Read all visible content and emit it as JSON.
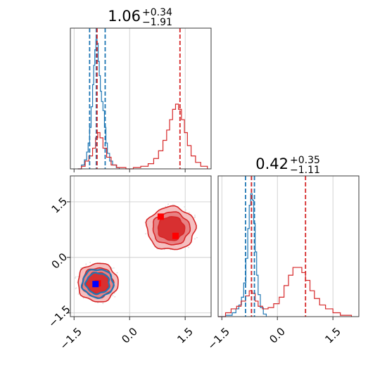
{
  "chart_data": {
    "type": "corner",
    "parameters": [
      "",
      ""
    ],
    "axis_range": [
      -1.6,
      2.2
    ],
    "ticks": [
      -1.5,
      0.0,
      1.5
    ],
    "tick_labels": [
      "−1.5",
      "0.0",
      "1.5"
    ],
    "grid": true,
    "panel_titles": [
      {
        "value": "1.06",
        "upper": "+0.34",
        "lower": "−1.91"
      },
      {
        "value": "0.42",
        "upper": "+0.35",
        "lower": "−1.11"
      }
    ],
    "colors": {
      "blue": "#1f77b4",
      "red": "#d62728",
      "red_light": "#f4b8b9",
      "red_mid": "#e77a7c"
    },
    "series": [
      {
        "color": "blue",
        "quantiles_p1": [
          -1.08,
          -0.9,
          -0.66
        ],
        "quantiles_p2": [
          -0.86,
          -0.7,
          -0.62
        ],
        "marker": [
          -0.92,
          -0.72
        ],
        "hist_p1": [
          [
            -1.4,
            0.0
          ],
          [
            -1.3,
            0.03
          ],
          [
            -1.22,
            0.07
          ],
          [
            -1.16,
            0.13
          ],
          [
            -1.12,
            0.2
          ],
          [
            -1.08,
            0.32
          ],
          [
            -1.04,
            0.48
          ],
          [
            -1.0,
            0.65
          ],
          [
            -0.97,
            0.8
          ],
          [
            -0.94,
            0.92
          ],
          [
            -0.91,
            1.0
          ],
          [
            -0.88,
            0.97
          ],
          [
            -0.85,
            0.83
          ],
          [
            -0.82,
            0.72
          ],
          [
            -0.79,
            0.6
          ],
          [
            -0.76,
            0.52
          ],
          [
            -0.72,
            0.45
          ],
          [
            -0.68,
            0.32
          ],
          [
            -0.64,
            0.2
          ],
          [
            -0.6,
            0.12
          ],
          [
            -0.54,
            0.06
          ],
          [
            -0.46,
            0.03
          ],
          [
            -0.36,
            0.01
          ],
          [
            -0.28,
            0.0
          ]
        ],
        "hist_p2": [
          [
            -1.6,
            0.0
          ],
          [
            -1.4,
            0.01
          ],
          [
            -1.22,
            0.03
          ],
          [
            -1.12,
            0.06
          ],
          [
            -1.04,
            0.09
          ],
          [
            -0.97,
            0.15
          ],
          [
            -0.91,
            0.26
          ],
          [
            -0.85,
            0.45
          ],
          [
            -0.8,
            0.68
          ],
          [
            -0.76,
            0.86
          ],
          [
            -0.72,
            0.95
          ],
          [
            -0.68,
            0.9
          ],
          [
            -0.64,
            0.72
          ],
          [
            -0.6,
            0.5
          ],
          [
            -0.56,
            0.32
          ],
          [
            -0.52,
            0.17
          ],
          [
            -0.46,
            0.07
          ],
          [
            -0.38,
            0.02
          ],
          [
            -0.3,
            0.0
          ]
        ]
      },
      {
        "color": "red",
        "quantiles_p1": [
          -0.88,
          1.36
        ],
        "quantiles_p2": [
          -0.7,
          0.76
        ],
        "markers": [
          [
            0.84,
            1.1
          ],
          [
            1.24,
            0.58
          ],
          [
            -0.86,
            -0.7
          ]
        ],
        "hist_p1": [
          [
            -1.4,
            0.0
          ],
          [
            -1.3,
            0.02
          ],
          [
            -1.2,
            0.06
          ],
          [
            -1.1,
            0.1
          ],
          [
            -1.0,
            0.16
          ],
          [
            -0.92,
            0.24
          ],
          [
            -0.86,
            0.28
          ],
          [
            -0.8,
            0.24
          ],
          [
            -0.72,
            0.16
          ],
          [
            -0.62,
            0.09
          ],
          [
            -0.5,
            0.03
          ],
          [
            -0.35,
            0.01
          ],
          [
            -0.1,
            0.0
          ],
          [
            0.1,
            0.01
          ],
          [
            0.3,
            0.02
          ],
          [
            0.5,
            0.04
          ],
          [
            0.65,
            0.08
          ],
          [
            0.78,
            0.14
          ],
          [
            0.9,
            0.22
          ],
          [
            1.0,
            0.3
          ],
          [
            1.08,
            0.38
          ],
          [
            1.16,
            0.46
          ],
          [
            1.24,
            0.5
          ],
          [
            1.32,
            0.46
          ],
          [
            1.4,
            0.38
          ],
          [
            1.48,
            0.28
          ],
          [
            1.56,
            0.18
          ],
          [
            1.66,
            0.1
          ],
          [
            1.78,
            0.05
          ],
          [
            1.92,
            0.02
          ],
          [
            2.1,
            0.0
          ]
        ],
        "hist_p2": [
          [
            -1.6,
            0.0
          ],
          [
            -1.4,
            0.03
          ],
          [
            -1.25,
            0.06
          ],
          [
            -1.1,
            0.08
          ],
          [
            -0.98,
            0.12
          ],
          [
            -0.86,
            0.16
          ],
          [
            -0.76,
            0.2
          ],
          [
            -0.68,
            0.18
          ],
          [
            -0.6,
            0.12
          ],
          [
            -0.52,
            0.08
          ],
          [
            -0.4,
            0.06
          ],
          [
            -0.25,
            0.07
          ],
          [
            -0.1,
            0.1
          ],
          [
            0.05,
            0.15
          ],
          [
            0.18,
            0.24
          ],
          [
            0.3,
            0.32
          ],
          [
            0.42,
            0.38
          ],
          [
            0.55,
            0.38
          ],
          [
            0.66,
            0.34
          ],
          [
            0.76,
            0.28
          ],
          [
            0.88,
            0.2
          ],
          [
            1.0,
            0.14
          ],
          [
            1.14,
            0.09
          ],
          [
            1.3,
            0.06
          ],
          [
            1.5,
            0.03
          ],
          [
            1.7,
            0.01
          ],
          [
            2.0,
            0.0
          ]
        ]
      }
    ],
    "contours": [
      {
        "color": "red",
        "center": [
          1.12,
          0.78
        ],
        "radii": [
          [
            0.66,
            0.58
          ],
          [
            0.5,
            0.44
          ],
          [
            0.36,
            0.32
          ]
        ]
      },
      {
        "color": "red",
        "center": [
          -0.86,
          -0.68
        ],
        "radii": [
          [
            0.54,
            0.52
          ],
          [
            0.42,
            0.4
          ],
          [
            0.3,
            0.28
          ]
        ]
      },
      {
        "color": "blue",
        "center": [
          -0.86,
          -0.7
        ],
        "radii": [
          [
            0.42,
            0.38
          ],
          [
            0.32,
            0.28
          ]
        ]
      }
    ]
  }
}
